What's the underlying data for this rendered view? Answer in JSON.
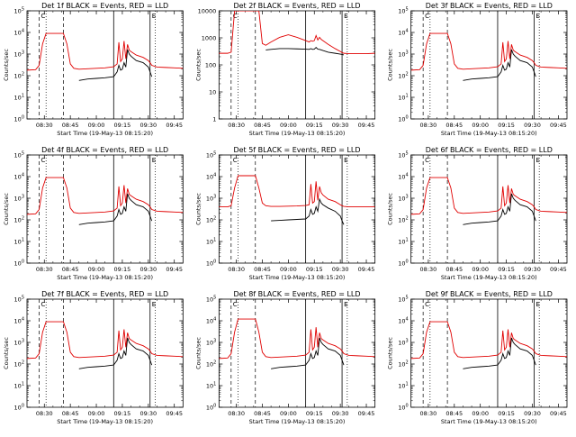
{
  "common": {
    "xlabel": "Start Time (19-May-13 08:15:20)",
    "ylabel": "Counts/sec",
    "xticks": [
      "08:30",
      "08:45",
      "09:00",
      "09:15",
      "09:30",
      "09:45"
    ],
    "marker_c": "C",
    "marker_e": "E",
    "legend_series": [
      "Events",
      "LLD"
    ],
    "colors": {
      "events": "#000000",
      "lld": "#e00000"
    }
  },
  "chart_data": [
    {
      "type": "line",
      "title": "Det 1f BLACK = Events, RED = LLD",
      "yscale": "log",
      "ylim": [
        1,
        100000
      ],
      "yticks": [
        "10^0",
        "10^1",
        "10^2",
        "10^3",
        "10^4",
        "10^5"
      ],
      "x": [
        "08:20",
        "08:25",
        "08:27",
        "08:29",
        "08:31",
        "08:41",
        "08:43",
        "08:45",
        "08:47",
        "08:50",
        "08:55",
        "09:00",
        "09:05",
        "09:10",
        "09:12",
        "09:13",
        "09:14",
        "09:15",
        "09:16",
        "09:17",
        "09:18",
        "09:19",
        "09:20",
        "09:23",
        "09:27",
        "09:30",
        "09:31",
        "09:32",
        "09:35",
        "09:40",
        "09:45",
        "09:50"
      ],
      "series": [
        {
          "name": "LLD",
          "values": [
            180,
            190,
            300,
            3000,
            9000,
            9000,
            3000,
            350,
            220,
            200,
            210,
            220,
            230,
            260,
            350,
            3500,
            450,
            600,
            4000,
            600,
            2800,
            1500,
            1300,
            900,
            700,
            500,
            400,
            300,
            250,
            240,
            230,
            220
          ]
        },
        {
          "name": "Events",
          "values": [
            null,
            null,
            null,
            null,
            null,
            null,
            null,
            null,
            null,
            60,
            70,
            75,
            80,
            90,
            150,
            300,
            180,
            200,
            400,
            250,
            1600,
            1000,
            800,
            500,
            400,
            250,
            150,
            90,
            null,
            null,
            null,
            null
          ]
        }
      ]
    },
    {
      "type": "line",
      "title": "Det 2f BLACK = Events, RED = LLD",
      "yscale": "log",
      "ylim": [
        1,
        12000
      ],
      "yticks": [
        "1",
        "10",
        "100",
        "1000",
        "10000"
      ],
      "x": [
        "08:20",
        "08:25",
        "08:27",
        "08:29",
        "08:31",
        "08:41",
        "08:43",
        "08:45",
        "08:47",
        "08:50",
        "08:55",
        "09:00",
        "09:05",
        "09:10",
        "09:12",
        "09:13",
        "09:14",
        "09:15",
        "09:16",
        "09:17",
        "09:18",
        "09:19",
        "09:20",
        "09:23",
        "09:27",
        "09:30",
        "09:31",
        "09:32",
        "09:35",
        "09:40",
        "09:45",
        "09:50"
      ],
      "series": [
        {
          "name": "LLD",
          "values": [
            300,
            300,
            330,
            12000,
            12000,
            12000,
            12000,
            700,
            600,
            800,
            1200,
            1500,
            1200,
            900,
            800,
            900,
            850,
            900,
            1400,
            950,
            1200,
            1000,
            900,
            650,
            450,
            350,
            320,
            300,
            290,
            290,
            290,
            300
          ]
        },
        {
          "name": "Events",
          "values": [
            null,
            null,
            null,
            null,
            null,
            null,
            null,
            null,
            400,
            420,
            450,
            450,
            440,
            430,
            420,
            450,
            420,
            430,
            500,
            430,
            420,
            400,
            380,
            330,
            300,
            280,
            270,
            260,
            null,
            null,
            null,
            null
          ]
        }
      ]
    },
    {
      "type": "line",
      "title": "Det 3f BLACK = Events, RED = LLD",
      "yscale": "log",
      "ylim": [
        1,
        100000
      ],
      "yticks": [
        "10^0",
        "10^1",
        "10^2",
        "10^3",
        "10^4",
        "10^5"
      ],
      "x": [
        "08:20",
        "08:25",
        "08:27",
        "08:29",
        "08:31",
        "08:41",
        "08:43",
        "08:45",
        "08:47",
        "08:50",
        "08:55",
        "09:00",
        "09:05",
        "09:10",
        "09:12",
        "09:13",
        "09:14",
        "09:15",
        "09:16",
        "09:17",
        "09:18",
        "09:19",
        "09:20",
        "09:23",
        "09:27",
        "09:30",
        "09:31",
        "09:32",
        "09:35",
        "09:40",
        "09:45",
        "09:50"
      ],
      "series": [
        {
          "name": "LLD",
          "values": [
            180,
            190,
            300,
            3000,
            9000,
            9000,
            3000,
            350,
            220,
            200,
            210,
            220,
            230,
            260,
            350,
            3500,
            450,
            600,
            4000,
            600,
            2800,
            1500,
            1300,
            900,
            700,
            500,
            400,
            300,
            250,
            240,
            230,
            220
          ]
        },
        {
          "name": "Events",
          "values": [
            null,
            null,
            null,
            null,
            null,
            null,
            null,
            null,
            null,
            60,
            70,
            75,
            80,
            90,
            150,
            300,
            180,
            200,
            400,
            250,
            1600,
            1000,
            800,
            500,
            400,
            250,
            150,
            90,
            null,
            null,
            null,
            null
          ]
        }
      ]
    },
    {
      "type": "line",
      "title": "Det 4f BLACK = Events, RED = LLD",
      "yscale": "log",
      "ylim": [
        1,
        100000
      ],
      "yticks": [
        "10^0",
        "10^1",
        "10^2",
        "10^3",
        "10^4",
        "10^5"
      ],
      "x": [
        "08:20",
        "08:25",
        "08:27",
        "08:29",
        "08:31",
        "08:41",
        "08:43",
        "08:45",
        "08:47",
        "08:50",
        "08:55",
        "09:00",
        "09:05",
        "09:10",
        "09:12",
        "09:13",
        "09:14",
        "09:15",
        "09:16",
        "09:17",
        "09:18",
        "09:19",
        "09:20",
        "09:23",
        "09:27",
        "09:30",
        "09:31",
        "09:32",
        "09:35",
        "09:40",
        "09:45",
        "09:50"
      ],
      "series": [
        {
          "name": "LLD",
          "values": [
            180,
            190,
            300,
            3000,
            9000,
            9000,
            3000,
            350,
            220,
            200,
            210,
            220,
            230,
            260,
            350,
            3500,
            450,
            600,
            4000,
            600,
            2800,
            1500,
            1300,
            900,
            700,
            500,
            400,
            300,
            250,
            240,
            230,
            220
          ]
        },
        {
          "name": "Events",
          "values": [
            null,
            null,
            null,
            null,
            null,
            null,
            null,
            null,
            null,
            60,
            70,
            75,
            80,
            90,
            150,
            300,
            180,
            200,
            400,
            250,
            1600,
            1000,
            800,
            500,
            400,
            250,
            150,
            90,
            null,
            null,
            null,
            null
          ]
        }
      ]
    },
    {
      "type": "line",
      "title": "Det 5f BLACK = Events, RED = LLD",
      "yscale": "log",
      "ylim": [
        1,
        100000
      ],
      "yticks": [
        "10^0",
        "10^1",
        "10^2",
        "10^3",
        "10^4",
        "10^5"
      ],
      "x": [
        "08:20",
        "08:25",
        "08:27",
        "08:29",
        "08:31",
        "08:41",
        "08:43",
        "08:45",
        "08:47",
        "08:50",
        "08:55",
        "09:00",
        "09:05",
        "09:10",
        "09:12",
        "09:13",
        "09:14",
        "09:15",
        "09:16",
        "09:17",
        "09:18",
        "09:19",
        "09:20",
        "09:23",
        "09:27",
        "09:30",
        "09:31",
        "09:32",
        "09:35",
        "09:40",
        "09:45",
        "09:50"
      ],
      "series": [
        {
          "name": "LLD",
          "values": [
            400,
            400,
            450,
            3000,
            11000,
            11000,
            3000,
            600,
            450,
            420,
            420,
            430,
            440,
            460,
            500,
            4500,
            600,
            700,
            6000,
            800,
            3500,
            1800,
            1400,
            900,
            700,
            500,
            450,
            420,
            400,
            400,
            400,
            400
          ]
        },
        {
          "name": "Events",
          "values": [
            null,
            null,
            null,
            null,
            null,
            null,
            null,
            null,
            null,
            90,
            95,
            100,
            105,
            110,
            150,
            300,
            180,
            200,
            400,
            250,
            900,
            600,
            500,
            350,
            250,
            150,
            90,
            60,
            null,
            null,
            null,
            null
          ]
        }
      ]
    },
    {
      "type": "line",
      "title": "Det 6f BLACK = Events, RED = LLD",
      "yscale": "log",
      "ylim": [
        1,
        100000
      ],
      "yticks": [
        "10^0",
        "10^1",
        "10^2",
        "10^3",
        "10^4",
        "10^5"
      ],
      "x": [
        "08:20",
        "08:25",
        "08:27",
        "08:29",
        "08:31",
        "08:41",
        "08:43",
        "08:45",
        "08:47",
        "08:50",
        "08:55",
        "09:00",
        "09:05",
        "09:10",
        "09:12",
        "09:13",
        "09:14",
        "09:15",
        "09:16",
        "09:17",
        "09:18",
        "09:19",
        "09:20",
        "09:23",
        "09:27",
        "09:30",
        "09:31",
        "09:32",
        "09:35",
        "09:40",
        "09:45",
        "09:50"
      ],
      "series": [
        {
          "name": "LLD",
          "values": [
            180,
            190,
            300,
            3000,
            9000,
            9000,
            3000,
            350,
            220,
            200,
            210,
            220,
            230,
            260,
            350,
            3500,
            450,
            600,
            4000,
            600,
            2800,
            1500,
            1300,
            900,
            700,
            500,
            400,
            300,
            250,
            240,
            230,
            220
          ]
        },
        {
          "name": "Events",
          "values": [
            null,
            null,
            null,
            null,
            null,
            null,
            null,
            null,
            null,
            60,
            70,
            75,
            80,
            90,
            150,
            300,
            180,
            200,
            400,
            250,
            1600,
            1000,
            800,
            500,
            400,
            250,
            150,
            90,
            null,
            null,
            null,
            null
          ]
        }
      ]
    },
    {
      "type": "line",
      "title": "Det 7f BLACK = Events, RED = LLD",
      "yscale": "log",
      "ylim": [
        1,
        100000
      ],
      "yticks": [
        "10^0",
        "10^1",
        "10^2",
        "10^3",
        "10^4",
        "10^5"
      ],
      "x": [
        "08:20",
        "08:25",
        "08:27",
        "08:29",
        "08:31",
        "08:41",
        "08:43",
        "08:45",
        "08:47",
        "08:50",
        "08:55",
        "09:00",
        "09:05",
        "09:10",
        "09:12",
        "09:13",
        "09:14",
        "09:15",
        "09:16",
        "09:17",
        "09:18",
        "09:19",
        "09:20",
        "09:23",
        "09:27",
        "09:30",
        "09:31",
        "09:32",
        "09:35",
        "09:40",
        "09:45",
        "09:50"
      ],
      "series": [
        {
          "name": "LLD",
          "values": [
            180,
            190,
            300,
            3000,
            9000,
            9000,
            3000,
            350,
            220,
            200,
            210,
            220,
            230,
            260,
            350,
            3500,
            450,
            600,
            4000,
            600,
            2800,
            1500,
            1300,
            900,
            700,
            500,
            400,
            300,
            250,
            240,
            230,
            220
          ]
        },
        {
          "name": "Events",
          "values": [
            null,
            null,
            null,
            null,
            null,
            null,
            null,
            null,
            null,
            60,
            70,
            75,
            80,
            90,
            150,
            300,
            180,
            200,
            400,
            250,
            1600,
            1000,
            800,
            500,
            400,
            250,
            150,
            90,
            null,
            null,
            null,
            null
          ]
        }
      ]
    },
    {
      "type": "line",
      "title": "Det 8f BLACK = Events, RED = LLD",
      "yscale": "log",
      "ylim": [
        1,
        100000
      ],
      "yticks": [
        "10^0",
        "10^1",
        "10^2",
        "10^3",
        "10^4",
        "10^5"
      ],
      "x": [
        "08:20",
        "08:25",
        "08:27",
        "08:29",
        "08:31",
        "08:41",
        "08:43",
        "08:45",
        "08:47",
        "08:50",
        "08:55",
        "09:00",
        "09:05",
        "09:10",
        "09:12",
        "09:13",
        "09:14",
        "09:15",
        "09:16",
        "09:17",
        "09:18",
        "09:19",
        "09:20",
        "09:23",
        "09:27",
        "09:30",
        "09:31",
        "09:32",
        "09:35",
        "09:40",
        "09:45",
        "09:50"
      ],
      "series": [
        {
          "name": "LLD",
          "values": [
            180,
            190,
            300,
            3000,
            12000,
            12000,
            3000,
            350,
            220,
            200,
            210,
            220,
            230,
            260,
            350,
            4000,
            450,
            600,
            5000,
            600,
            2800,
            1500,
            1300,
            900,
            700,
            500,
            400,
            300,
            250,
            240,
            230,
            220
          ]
        },
        {
          "name": "Events",
          "values": [
            null,
            null,
            null,
            null,
            null,
            null,
            null,
            null,
            null,
            60,
            70,
            75,
            80,
            90,
            150,
            300,
            180,
            200,
            400,
            250,
            1600,
            1000,
            800,
            500,
            400,
            250,
            150,
            90,
            null,
            null,
            null,
            null
          ]
        }
      ]
    },
    {
      "type": "line",
      "title": "Det 9f BLACK = Events, RED = LLD",
      "yscale": "log",
      "ylim": [
        1,
        100000
      ],
      "yticks": [
        "10^0",
        "10^1",
        "10^2",
        "10^3",
        "10^4",
        "10^5"
      ],
      "x": [
        "08:20",
        "08:25",
        "08:27",
        "08:29",
        "08:31",
        "08:41",
        "08:43",
        "08:45",
        "08:47",
        "08:50",
        "08:55",
        "09:00",
        "09:05",
        "09:10",
        "09:12",
        "09:13",
        "09:14",
        "09:15",
        "09:16",
        "09:17",
        "09:18",
        "09:19",
        "09:20",
        "09:23",
        "09:27",
        "09:30",
        "09:31",
        "09:32",
        "09:35",
        "09:40",
        "09:45",
        "09:50"
      ],
      "series": [
        {
          "name": "LLD",
          "values": [
            180,
            190,
            300,
            3000,
            9000,
            9000,
            3000,
            350,
            220,
            200,
            210,
            220,
            230,
            260,
            350,
            3500,
            450,
            600,
            4000,
            600,
            2800,
            1500,
            1300,
            900,
            700,
            500,
            400,
            300,
            250,
            240,
            230,
            220
          ]
        },
        {
          "name": "Events",
          "values": [
            null,
            null,
            null,
            null,
            null,
            null,
            null,
            null,
            null,
            60,
            70,
            75,
            80,
            90,
            150,
            300,
            180,
            200,
            400,
            250,
            1600,
            1000,
            800,
            500,
            400,
            250,
            150,
            90,
            null,
            null,
            null,
            null
          ]
        }
      ]
    }
  ]
}
